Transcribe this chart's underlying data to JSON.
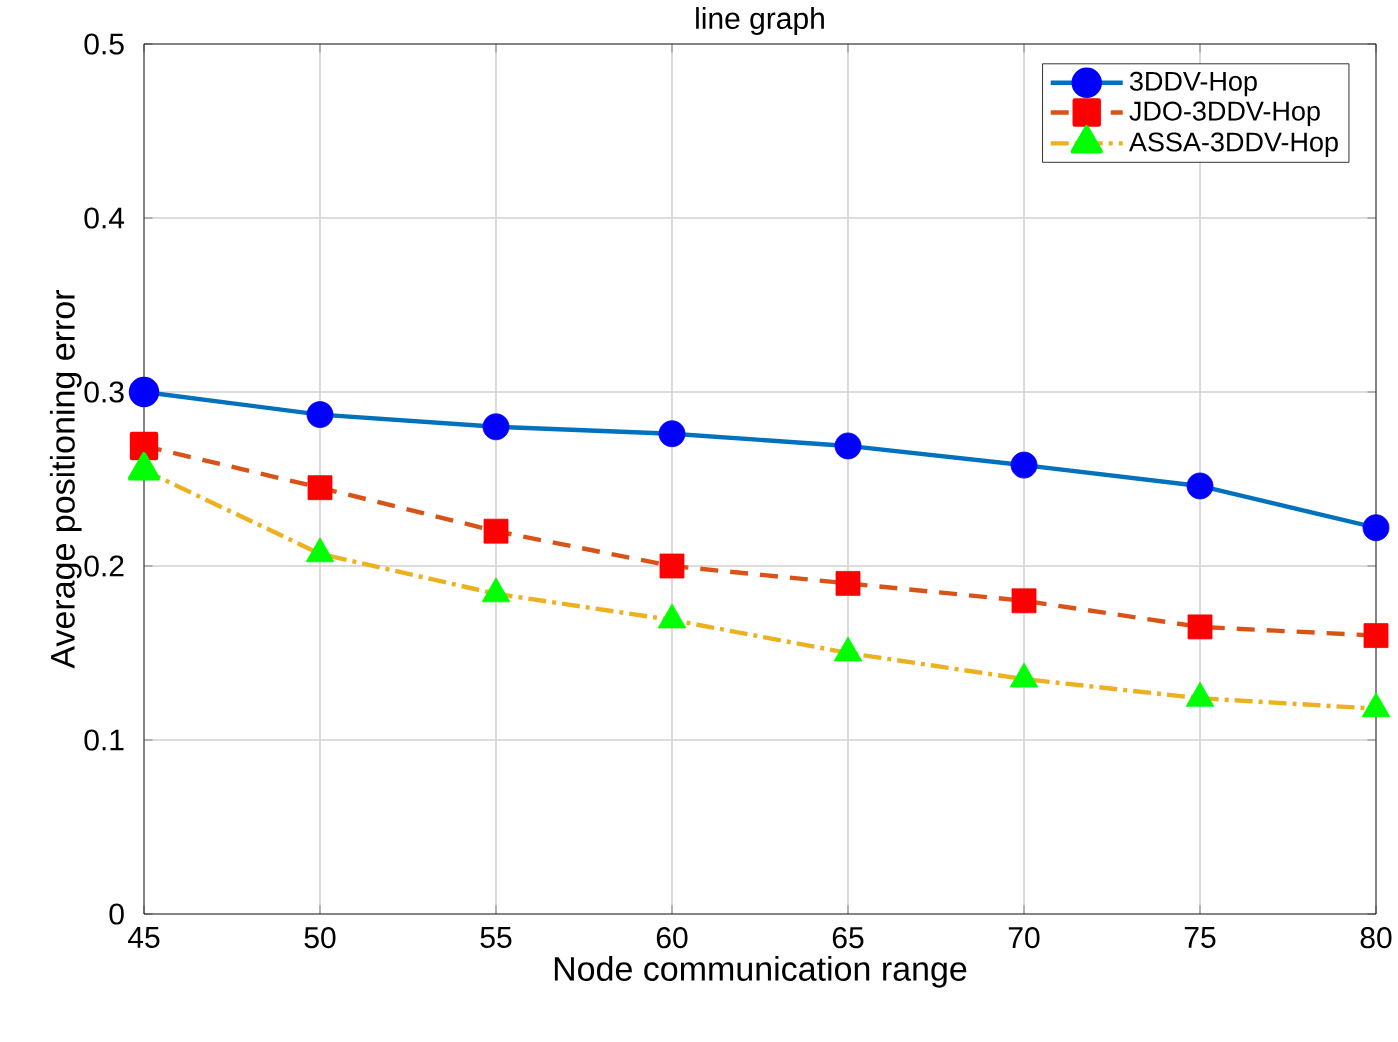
{
  "chart_data": {
    "type": "line",
    "title": "line graph",
    "xlabel": "Node communication range",
    "ylabel": "Average positioning error",
    "x": [
      45,
      50,
      55,
      60,
      65,
      70,
      75,
      80
    ],
    "series": [
      {
        "name": "3DDV-Hop",
        "color": "#0072bd",
        "marker": "circle",
        "line_style": "solid",
        "colors": [
          "#0000ff",
          "#0000ff",
          "#0000ff",
          "#0000ff",
          "#0000ff",
          "#0000ff",
          "#0000ff",
          "#0000ff"
        ],
        "values": [
          0.3,
          0.287,
          0.28,
          0.276,
          0.269,
          0.258,
          0.246,
          0.222
        ]
      },
      {
        "name": "JDO-3DDV-Hop",
        "color": "#d95319",
        "marker": "square",
        "line_style": "dashed",
        "colors": [
          "#ff0000",
          "#ff0000",
          "#ff0000",
          "#ff0000",
          "#ff0000",
          "#ff0000",
          "#ff0000",
          "#ff0000"
        ],
        "values": [
          0.269,
          0.245,
          0.22,
          0.2,
          0.19,
          0.18,
          0.165,
          0.16
        ]
      },
      {
        "name": "ASSA-3DDV-Hop",
        "color": "#edb120",
        "marker": "triangle",
        "line_style": "dashdot",
        "colors": [
          "#00ff00",
          "#00ff00",
          "#00ff00",
          "#00ff00",
          "#00ff00",
          "#00ff00",
          "#00ff00",
          "#00ff00"
        ],
        "values": [
          0.255,
          0.207,
          0.184,
          0.169,
          0.15,
          0.135,
          0.124,
          0.118
        ]
      }
    ],
    "xlim": [
      45,
      80
    ],
    "ylim": [
      0,
      0.5
    ],
    "xticks": [
      45,
      50,
      55,
      60,
      65,
      70,
      75,
      80
    ],
    "yticks": [
      0,
      0.1,
      0.2,
      0.3,
      0.4,
      0.5
    ],
    "grid": true,
    "legend": "top right"
  }
}
